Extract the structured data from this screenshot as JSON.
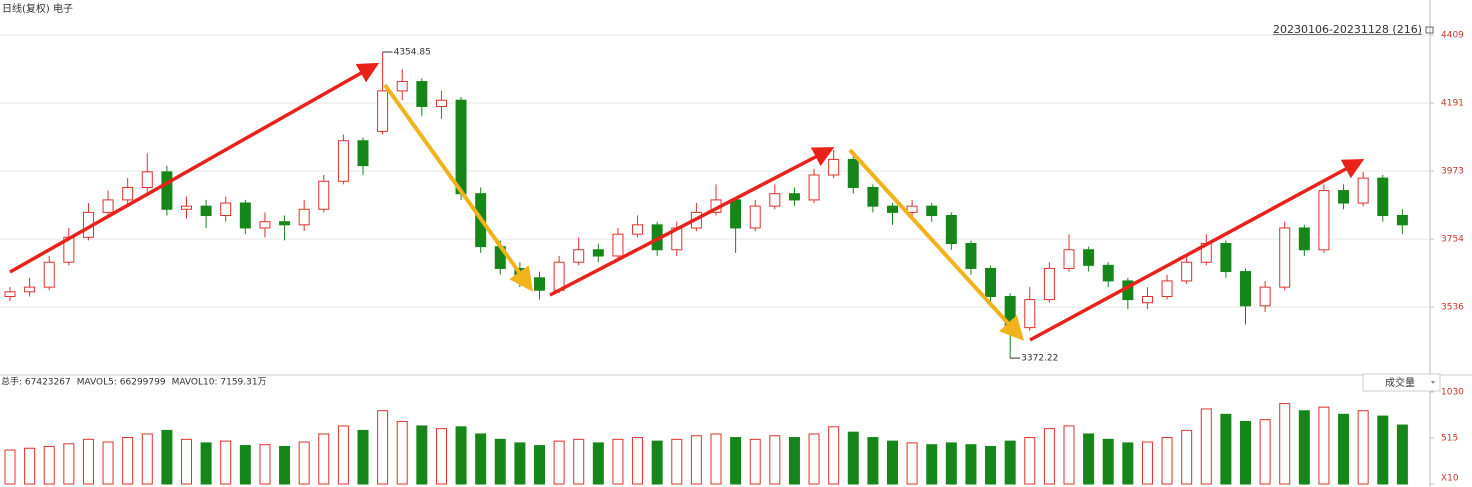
{
  "chart_data": {
    "type": "candlestick",
    "title": "日线(复权) 电子",
    "range_label": "20230106-20231128 (216)",
    "open": [
      3570,
      3585,
      3600,
      3680,
      3760,
      3840,
      3880,
      3920,
      3970,
      3850,
      3860,
      3830,
      3870,
      3790,
      3810,
      3800,
      3850,
      3940,
      4070,
      4100,
      4230,
      4260,
      4180,
      4200,
      3900,
      3730,
      3660,
      3630,
      3590,
      3680,
      3720,
      3700,
      3770,
      3800,
      3720,
      3790,
      3840,
      3880,
      3790,
      3860,
      3900,
      3880,
      3960,
      4010,
      3920,
      3860,
      3840,
      3860,
      3830,
      3740,
      3660,
      3570,
      3470,
      3560,
      3660,
      3720,
      3670,
      3620,
      3550,
      3570,
      3620,
      3680,
      3740,
      3650,
      3540,
      3600,
      3790,
      3720,
      3910,
      3870,
      3950,
      3830
    ],
    "high": [
      3600,
      3630,
      3700,
      3790,
      3870,
      3910,
      3950,
      4030,
      3990,
      3890,
      3880,
      3890,
      3880,
      3840,
      3830,
      3880,
      3960,
      4090,
      4080,
      4354.85,
      4300,
      4270,
      4230,
      4210,
      3920,
      3750,
      3680,
      3650,
      3700,
      3760,
      3740,
      3790,
      3830,
      3810,
      3810,
      3870,
      3930,
      3890,
      3880,
      3930,
      3920,
      3980,
      4040,
      4020,
      3930,
      3870,
      3880,
      3870,
      3840,
      3750,
      3670,
      3580,
      3600,
      3680,
      3770,
      3730,
      3680,
      3630,
      3600,
      3640,
      3700,
      3770,
      3750,
      3660,
      3620,
      3810,
      3800,
      3930,
      3930,
      3970,
      3960,
      3850
    ],
    "low": [
      3555,
      3570,
      3590,
      3670,
      3750,
      3820,
      3860,
      3900,
      3830,
      3820,
      3790,
      3810,
      3770,
      3760,
      3750,
      3780,
      3840,
      3930,
      3960,
      4090,
      4200,
      4150,
      4140,
      3880,
      3710,
      3640,
      3600,
      3560,
      3580,
      3670,
      3680,
      3690,
      3760,
      3700,
      3700,
      3780,
      3830,
      3710,
      3780,
      3850,
      3860,
      3870,
      3950,
      3900,
      3840,
      3800,
      3820,
      3810,
      3720,
      3640,
      3550,
      3372.22,
      3460,
      3550,
      3650,
      3650,
      3600,
      3530,
      3530,
      3560,
      3610,
      3670,
      3630,
      3480,
      3520,
      3590,
      3700,
      3710,
      3850,
      3860,
      3810,
      3770
    ],
    "close": [
      3585,
      3600,
      3680,
      3760,
      3840,
      3880,
      3920,
      3970,
      3850,
      3860,
      3830,
      3870,
      3790,
      3810,
      3800,
      3850,
      3940,
      4070,
      3990,
      4230,
      4260,
      4180,
      4200,
      3900,
      3730,
      3660,
      3630,
      3590,
      3680,
      3720,
      3700,
      3770,
      3800,
      3720,
      3790,
      3840,
      3880,
      3790,
      3860,
      3900,
      3880,
      3960,
      4010,
      3920,
      3860,
      3840,
      3860,
      3830,
      3740,
      3660,
      3570,
      3470,
      3560,
      3660,
      3720,
      3670,
      3620,
      3560,
      3570,
      3620,
      3680,
      3740,
      3650,
      3540,
      3600,
      3790,
      3720,
      3910,
      3870,
      3950,
      3830,
      3800
    ],
    "up_color": "#e0302a",
    "down_color": "#17861a",
    "ylim": [
      3334,
      4464
    ],
    "yticks": [
      3536,
      3754,
      3973,
      4191,
      4409
    ],
    "grid": true,
    "volume": {
      "header": [
        "总手: 67423267",
        "MAVOL5: 66299799",
        "MAVOL10: 7159.31万"
      ],
      "header_colors": [
        "#c0392b",
        "#d08a1a",
        "#222222"
      ],
      "selector": "成交量",
      "values": [
        380,
        400,
        420,
        450,
        500,
        470,
        520,
        560,
        600,
        500,
        460,
        480,
        430,
        440,
        420,
        470,
        560,
        650,
        600,
        820,
        700,
        650,
        620,
        640,
        560,
        500,
        460,
        430,
        480,
        500,
        460,
        500,
        520,
        480,
        500,
        540,
        560,
        520,
        500,
        540,
        520,
        560,
        640,
        580,
        520,
        480,
        460,
        440,
        460,
        440,
        420,
        480,
        520,
        620,
        650,
        560,
        500,
        460,
        470,
        520,
        600,
        840,
        780,
        700,
        720,
        900,
        820,
        860,
        780,
        820,
        760,
        660
      ],
      "ylim": [
        0,
        1108
      ],
      "yticks": [
        1030,
        515,
        {
          "value": 0,
          "label": "X10"
        }
      ]
    }
  }
}
